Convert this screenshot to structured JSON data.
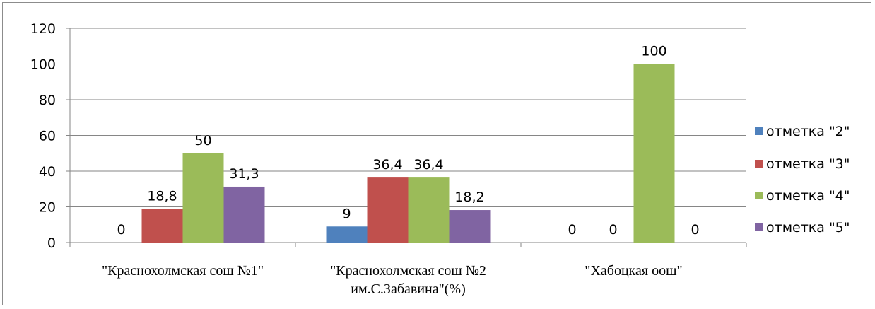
{
  "chart_data": {
    "type": "bar",
    "categories": [
      [
        "\"Краснохолмская сош №1\""
      ],
      [
        "\"Краснохолмская сош №2",
        "им.С.Забавина\"(%)"
      ],
      [
        "\"Хабоцкая оош\""
      ]
    ],
    "series": [
      {
        "name": "отметка \"2\"",
        "color": "#4F81BD",
        "values": [
          0,
          9,
          0
        ],
        "labels": [
          "0",
          "9",
          "0"
        ]
      },
      {
        "name": "отметка \"3\"",
        "color": "#C0504D",
        "values": [
          18.8,
          36.4,
          0
        ],
        "labels": [
          "18,8",
          "36,4",
          "0"
        ]
      },
      {
        "name": "отметка \"4\"",
        "color": "#9BBB59",
        "values": [
          50,
          36.4,
          100
        ],
        "labels": [
          "50",
          "36,4",
          "100"
        ]
      },
      {
        "name": "отметка \"5\"",
        "color": "#8064A2",
        "values": [
          31.3,
          18.2,
          0
        ],
        "labels": [
          "31,3",
          "18,2",
          "0"
        ]
      }
    ],
    "ylim": [
      0,
      120
    ],
    "yticks": [
      0,
      20,
      40,
      60,
      80,
      100,
      120
    ],
    "grid": true,
    "legend_position": "right",
    "xlabel": "",
    "ylabel": ""
  }
}
